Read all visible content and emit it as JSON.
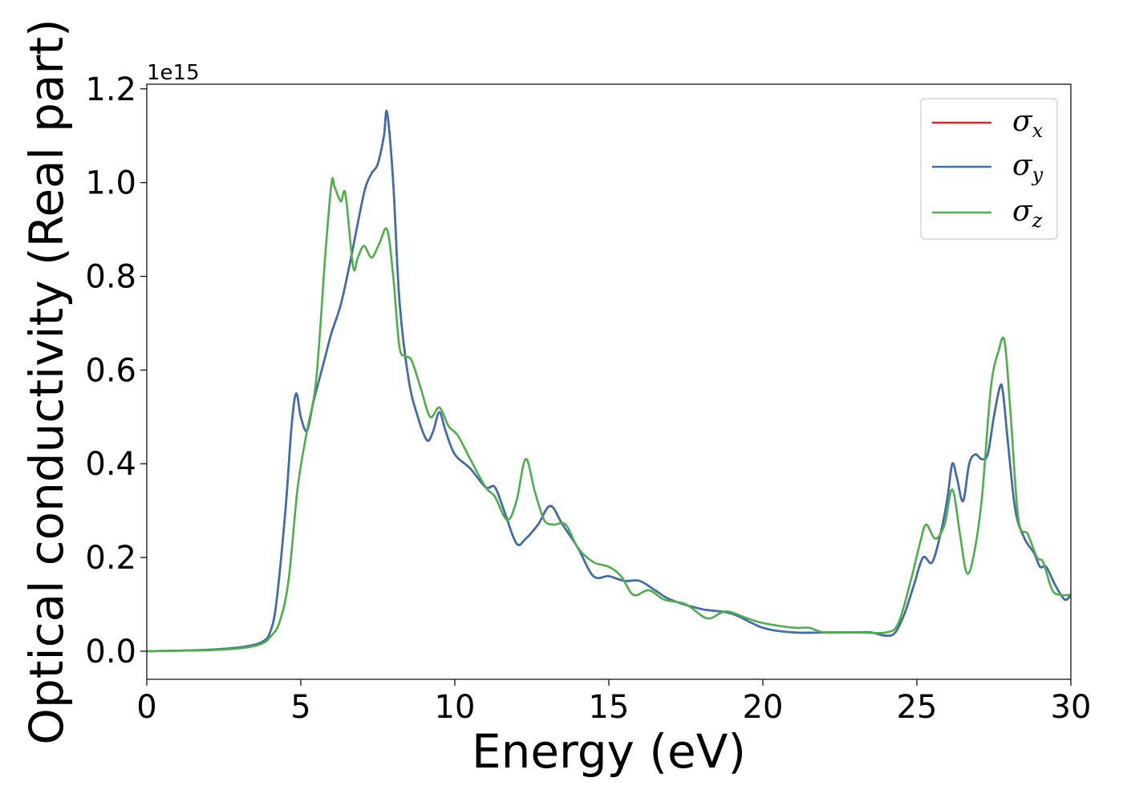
{
  "chart_data": {
    "type": "line",
    "title": "",
    "xlabel": "Energy (eV)",
    "ylabel": "Optical conductivity (Real part)",
    "y_offset_label": "1e15",
    "xlim": [
      0,
      30
    ],
    "ylim": [
      -0.06,
      1.21
    ],
    "xticks": [
      0,
      5,
      10,
      15,
      20,
      25,
      30
    ],
    "xtick_labels": [
      "0",
      "5",
      "10",
      "15",
      "20",
      "25",
      "30"
    ],
    "yticks": [
      0.0,
      0.2,
      0.4,
      0.6,
      0.8,
      1.0,
      1.2
    ],
    "ytick_labels": [
      "0.0",
      "0.2",
      "0.4",
      "0.6",
      "0.8",
      "1.0",
      "1.2"
    ],
    "grid": false,
    "legend_position": "top-right",
    "legend": [
      {
        "symbol": "σ",
        "subscript": "x",
        "color": "#d62728"
      },
      {
        "symbol": "σ",
        "subscript": "y",
        "color": "#3a6fb0"
      },
      {
        "symbol": "σ",
        "subscript": "z",
        "color": "#4daf4a"
      }
    ],
    "series": [
      {
        "id": "sigma_x",
        "color": "#d62728",
        "x": [
          0,
          1,
          2,
          3,
          3.5,
          3.8,
          4.0,
          4.2,
          4.5,
          4.7,
          4.85,
          5.0,
          5.2,
          5.4,
          5.6,
          5.8,
          6.0,
          6.3,
          6.6,
          6.9,
          7.1,
          7.3,
          7.5,
          7.7,
          7.8,
          8.0,
          8.2,
          8.5,
          8.8,
          9.1,
          9.3,
          9.5,
          9.7,
          10.0,
          10.5,
          11.0,
          11.3,
          11.6,
          12.0,
          12.3,
          12.7,
          13.1,
          13.5,
          14.0,
          14.5,
          15.0,
          15.5,
          16.0,
          16.5,
          17.0,
          18.0,
          19.0,
          20.0,
          21.0,
          22.0,
          23.0,
          23.5,
          24.0,
          24.3,
          24.6,
          24.9,
          25.2,
          25.5,
          25.8,
          26.0,
          26.15,
          26.3,
          26.5,
          26.7,
          26.9,
          27.1,
          27.3,
          27.5,
          27.7,
          27.8,
          27.95,
          28.2,
          28.5,
          28.8,
          29.0,
          29.2,
          29.5,
          29.8,
          30.0
        ],
        "y": [
          0.0,
          0.001,
          0.003,
          0.008,
          0.014,
          0.022,
          0.04,
          0.1,
          0.3,
          0.48,
          0.55,
          0.5,
          0.47,
          0.53,
          0.58,
          0.63,
          0.68,
          0.74,
          0.83,
          0.93,
          0.99,
          1.02,
          1.04,
          1.1,
          1.15,
          1.0,
          0.75,
          0.58,
          0.5,
          0.45,
          0.47,
          0.51,
          0.47,
          0.42,
          0.39,
          0.35,
          0.35,
          0.3,
          0.23,
          0.24,
          0.27,
          0.31,
          0.27,
          0.22,
          0.16,
          0.16,
          0.15,
          0.15,
          0.13,
          0.11,
          0.09,
          0.08,
          0.05,
          0.04,
          0.04,
          0.04,
          0.04,
          0.033,
          0.04,
          0.08,
          0.14,
          0.2,
          0.19,
          0.26,
          0.33,
          0.4,
          0.37,
          0.32,
          0.4,
          0.42,
          0.41,
          0.42,
          0.5,
          0.565,
          0.55,
          0.45,
          0.3,
          0.24,
          0.21,
          0.18,
          0.18,
          0.14,
          0.11,
          0.12
        ]
      },
      {
        "id": "sigma_y",
        "color": "#3a6fb0",
        "x": [
          0,
          1,
          2,
          3,
          3.5,
          3.8,
          4.0,
          4.2,
          4.5,
          4.7,
          4.85,
          5.0,
          5.2,
          5.4,
          5.6,
          5.8,
          6.0,
          6.3,
          6.6,
          6.9,
          7.1,
          7.3,
          7.5,
          7.7,
          7.8,
          8.0,
          8.2,
          8.5,
          8.8,
          9.1,
          9.3,
          9.5,
          9.7,
          10.0,
          10.5,
          11.0,
          11.3,
          11.6,
          12.0,
          12.3,
          12.7,
          13.1,
          13.5,
          14.0,
          14.5,
          15.0,
          15.5,
          16.0,
          16.5,
          17.0,
          18.0,
          19.0,
          20.0,
          21.0,
          22.0,
          23.0,
          23.5,
          24.0,
          24.3,
          24.6,
          24.9,
          25.2,
          25.5,
          25.8,
          26.0,
          26.15,
          26.3,
          26.5,
          26.7,
          26.9,
          27.1,
          27.3,
          27.5,
          27.7,
          27.8,
          27.95,
          28.2,
          28.5,
          28.8,
          29.0,
          29.2,
          29.5,
          29.8,
          30.0
        ],
        "y": [
          0.0,
          0.001,
          0.003,
          0.008,
          0.014,
          0.022,
          0.04,
          0.1,
          0.3,
          0.48,
          0.55,
          0.5,
          0.47,
          0.53,
          0.58,
          0.63,
          0.68,
          0.74,
          0.83,
          0.93,
          0.99,
          1.02,
          1.04,
          1.1,
          1.15,
          1.0,
          0.75,
          0.58,
          0.5,
          0.45,
          0.47,
          0.51,
          0.47,
          0.42,
          0.39,
          0.35,
          0.35,
          0.3,
          0.23,
          0.24,
          0.27,
          0.31,
          0.27,
          0.22,
          0.16,
          0.16,
          0.15,
          0.15,
          0.13,
          0.11,
          0.09,
          0.08,
          0.05,
          0.04,
          0.04,
          0.04,
          0.04,
          0.033,
          0.04,
          0.08,
          0.14,
          0.2,
          0.19,
          0.26,
          0.33,
          0.4,
          0.37,
          0.32,
          0.4,
          0.42,
          0.41,
          0.42,
          0.5,
          0.565,
          0.55,
          0.45,
          0.3,
          0.24,
          0.21,
          0.18,
          0.18,
          0.14,
          0.11,
          0.12
        ]
      },
      {
        "id": "sigma_z",
        "color": "#4daf4a",
        "x": [
          0,
          1,
          2,
          3,
          3.5,
          3.8,
          4.0,
          4.3,
          4.6,
          4.9,
          5.2,
          5.5,
          5.8,
          6.0,
          6.1,
          6.3,
          6.45,
          6.7,
          6.85,
          7.05,
          7.3,
          7.55,
          7.8,
          8.0,
          8.2,
          8.4,
          8.6,
          8.9,
          9.2,
          9.5,
          9.8,
          10.1,
          10.5,
          11.0,
          11.3,
          11.7,
          12.0,
          12.3,
          12.6,
          12.9,
          13.2,
          13.6,
          14.0,
          14.5,
          15.0,
          15.4,
          15.8,
          16.3,
          16.8,
          17.5,
          18.2,
          18.8,
          19.5,
          20.0,
          21.0,
          21.5,
          22.0,
          23.0,
          24.0,
          24.4,
          24.8,
          25.1,
          25.3,
          25.6,
          25.9,
          26.15,
          26.4,
          26.6,
          26.8,
          27.1,
          27.4,
          27.65,
          27.85,
          28.05,
          28.3,
          28.6,
          28.9,
          29.1,
          29.4,
          29.7,
          30.0
        ],
        "y": [
          0.0,
          0.001,
          0.002,
          0.006,
          0.011,
          0.018,
          0.03,
          0.06,
          0.15,
          0.35,
          0.47,
          0.58,
          0.85,
          1.0,
          0.99,
          0.96,
          0.975,
          0.82,
          0.84,
          0.865,
          0.84,
          0.87,
          0.9,
          0.8,
          0.65,
          0.63,
          0.62,
          0.56,
          0.5,
          0.52,
          0.48,
          0.46,
          0.41,
          0.35,
          0.33,
          0.28,
          0.32,
          0.41,
          0.34,
          0.28,
          0.27,
          0.27,
          0.22,
          0.19,
          0.18,
          0.16,
          0.12,
          0.13,
          0.11,
          0.1,
          0.07,
          0.085,
          0.07,
          0.06,
          0.05,
          0.05,
          0.04,
          0.04,
          0.04,
          0.06,
          0.15,
          0.23,
          0.27,
          0.24,
          0.27,
          0.345,
          0.25,
          0.17,
          0.19,
          0.32,
          0.56,
          0.64,
          0.66,
          0.5,
          0.28,
          0.25,
          0.2,
          0.19,
          0.13,
          0.12,
          0.12
        ]
      }
    ]
  }
}
